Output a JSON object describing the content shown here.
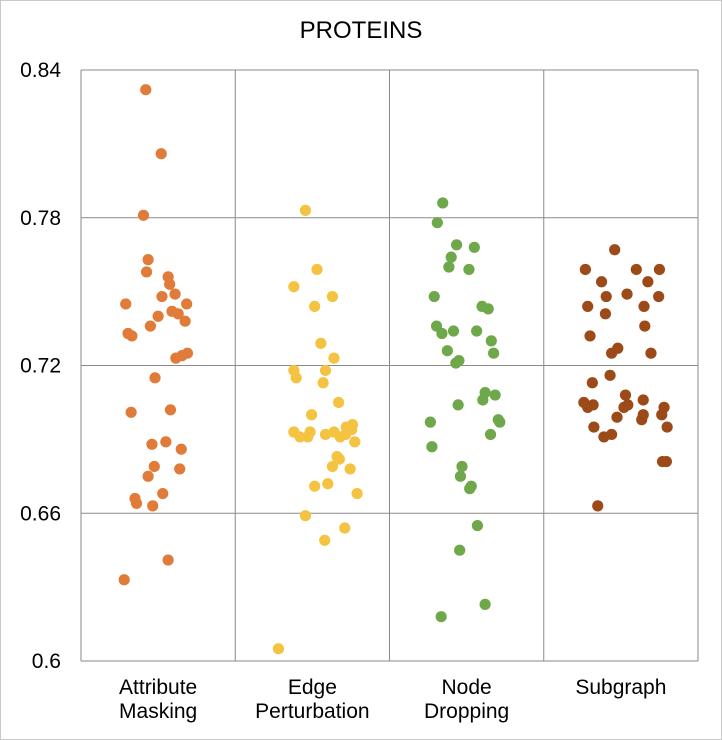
{
  "chart_data": {
    "type": "scatter",
    "title": "PROTEINS",
    "xlabel": "",
    "ylabel": "",
    "ylim": [
      0.6,
      0.84
    ],
    "yticks": [
      0.6,
      0.66,
      0.72,
      0.78,
      0.84
    ],
    "ytick_labels": [
      "0.6",
      "0.66",
      "0.72",
      "0.78",
      "0.84"
    ],
    "grid": true,
    "categories": [
      {
        "lines": [
          "Attribute",
          "Masking"
        ]
      },
      {
        "lines": [
          "Edge",
          "Perturbation"
        ]
      },
      {
        "lines": [
          "Node",
          "Dropping"
        ]
      },
      {
        "lines": [
          "Subgraph"
        ]
      }
    ],
    "series": [
      {
        "color": "#e07b39",
        "points": [
          {
            "j": -0.16,
            "y": 0.832
          },
          {
            "j": 0.04,
            "y": 0.806
          },
          {
            "j": -0.19,
            "y": 0.781
          },
          {
            "j": -0.13,
            "y": 0.763
          },
          {
            "j": -0.15,
            "y": 0.758
          },
          {
            "j": 0.13,
            "y": 0.756
          },
          {
            "j": 0.15,
            "y": 0.753
          },
          {
            "j": 0.22,
            "y": 0.749
          },
          {
            "j": 0.05,
            "y": 0.748
          },
          {
            "j": -0.42,
            "y": 0.745
          },
          {
            "j": 0.37,
            "y": 0.745
          },
          {
            "j": 0.18,
            "y": 0.742
          },
          {
            "j": 0.26,
            "y": 0.741
          },
          {
            "j": 0.0,
            "y": 0.74
          },
          {
            "j": 0.35,
            "y": 0.738
          },
          {
            "j": -0.1,
            "y": 0.736
          },
          {
            "j": -0.39,
            "y": 0.733
          },
          {
            "j": -0.34,
            "y": 0.732
          },
          {
            "j": 0.38,
            "y": 0.725
          },
          {
            "j": 0.31,
            "y": 0.724
          },
          {
            "j": 0.23,
            "y": 0.723
          },
          {
            "j": -0.04,
            "y": 0.715
          },
          {
            "j": 0.16,
            "y": 0.702
          },
          {
            "j": -0.35,
            "y": 0.701
          },
          {
            "j": 0.1,
            "y": 0.689
          },
          {
            "j": -0.08,
            "y": 0.688
          },
          {
            "j": 0.3,
            "y": 0.686
          },
          {
            "j": -0.05,
            "y": 0.679
          },
          {
            "j": 0.28,
            "y": 0.678
          },
          {
            "j": -0.13,
            "y": 0.675
          },
          {
            "j": 0.06,
            "y": 0.668
          },
          {
            "j": -0.3,
            "y": 0.666
          },
          {
            "j": -0.28,
            "y": 0.664
          },
          {
            "j": -0.07,
            "y": 0.663
          },
          {
            "j": 0.13,
            "y": 0.641
          },
          {
            "j": -0.44,
            "y": 0.633
          }
        ]
      },
      {
        "color": "#f5c342",
        "points": [
          {
            "j": -0.09,
            "y": 0.783
          },
          {
            "j": 0.06,
            "y": 0.759
          },
          {
            "j": -0.24,
            "y": 0.752
          },
          {
            "j": 0.26,
            "y": 0.748
          },
          {
            "j": 0.03,
            "y": 0.744
          },
          {
            "j": 0.11,
            "y": 0.729
          },
          {
            "j": 0.28,
            "y": 0.723
          },
          {
            "j": -0.24,
            "y": 0.718
          },
          {
            "j": 0.17,
            "y": 0.718
          },
          {
            "j": -0.21,
            "y": 0.715
          },
          {
            "j": 0.14,
            "y": 0.713
          },
          {
            "j": 0.34,
            "y": 0.705
          },
          {
            "j": -0.01,
            "y": 0.7
          },
          {
            "j": 0.52,
            "y": 0.696
          },
          {
            "j": 0.44,
            "y": 0.695
          },
          {
            "j": 0.51,
            "y": 0.694
          },
          {
            "j": -0.03,
            "y": 0.693
          },
          {
            "j": 0.28,
            "y": 0.693
          },
          {
            "j": -0.24,
            "y": 0.693
          },
          {
            "j": 0.17,
            "y": 0.692
          },
          {
            "j": 0.43,
            "y": 0.692
          },
          {
            "j": -0.06,
            "y": 0.691
          },
          {
            "j": -0.16,
            "y": 0.691
          },
          {
            "j": 0.36,
            "y": 0.691
          },
          {
            "j": 0.55,
            "y": 0.689
          },
          {
            "j": 0.32,
            "y": 0.683
          },
          {
            "j": 0.35,
            "y": 0.682
          },
          {
            "j": 0.26,
            "y": 0.679
          },
          {
            "j": 0.49,
            "y": 0.678
          },
          {
            "j": 0.2,
            "y": 0.672
          },
          {
            "j": 0.03,
            "y": 0.671
          },
          {
            "j": 0.58,
            "y": 0.668
          },
          {
            "j": -0.09,
            "y": 0.659
          },
          {
            "j": 0.42,
            "y": 0.654
          },
          {
            "j": 0.16,
            "y": 0.649
          },
          {
            "j": -0.44,
            "y": 0.605
          }
        ]
      },
      {
        "color": "#6fa84a",
        "points": [
          {
            "j": -0.31,
            "y": 0.786
          },
          {
            "j": -0.38,
            "y": 0.778
          },
          {
            "j": -0.13,
            "y": 0.769
          },
          {
            "j": 0.1,
            "y": 0.768
          },
          {
            "j": -0.2,
            "y": 0.764
          },
          {
            "j": -0.23,
            "y": 0.76
          },
          {
            "j": 0.03,
            "y": 0.759
          },
          {
            "j": -0.42,
            "y": 0.748
          },
          {
            "j": 0.2,
            "y": 0.744
          },
          {
            "j": 0.28,
            "y": 0.743
          },
          {
            "j": -0.39,
            "y": 0.736
          },
          {
            "j": -0.32,
            "y": 0.733
          },
          {
            "j": -0.17,
            "y": 0.734
          },
          {
            "j": 0.13,
            "y": 0.734
          },
          {
            "j": 0.32,
            "y": 0.73
          },
          {
            "j": -0.25,
            "y": 0.726
          },
          {
            "j": 0.35,
            "y": 0.725
          },
          {
            "j": -0.14,
            "y": 0.721
          },
          {
            "j": -0.1,
            "y": 0.722
          },
          {
            "j": 0.24,
            "y": 0.709
          },
          {
            "j": 0.37,
            "y": 0.708
          },
          {
            "j": 0.21,
            "y": 0.706
          },
          {
            "j": -0.11,
            "y": 0.704
          },
          {
            "j": 0.41,
            "y": 0.698
          },
          {
            "j": 0.43,
            "y": 0.697
          },
          {
            "j": -0.47,
            "y": 0.697
          },
          {
            "j": 0.31,
            "y": 0.692
          },
          {
            "j": -0.45,
            "y": 0.687
          },
          {
            "j": -0.06,
            "y": 0.679
          },
          {
            "j": -0.08,
            "y": 0.675
          },
          {
            "j": 0.06,
            "y": 0.671
          },
          {
            "j": 0.04,
            "y": 0.67
          },
          {
            "j": 0.14,
            "y": 0.655
          },
          {
            "j": -0.09,
            "y": 0.645
          },
          {
            "j": 0.24,
            "y": 0.623
          },
          {
            "j": -0.33,
            "y": 0.618
          }
        ]
      },
      {
        "color": "#9c4a17",
        "points": [
          {
            "j": -0.08,
            "y": 0.767
          },
          {
            "j": -0.46,
            "y": 0.759
          },
          {
            "j": 0.2,
            "y": 0.759
          },
          {
            "j": 0.5,
            "y": 0.759
          },
          {
            "j": -0.25,
            "y": 0.754
          },
          {
            "j": 0.35,
            "y": 0.754
          },
          {
            "j": 0.08,
            "y": 0.749
          },
          {
            "j": -0.19,
            "y": 0.748
          },
          {
            "j": 0.49,
            "y": 0.748
          },
          {
            "j": -0.43,
            "y": 0.744
          },
          {
            "j": 0.3,
            "y": 0.744
          },
          {
            "j": -0.2,
            "y": 0.741
          },
          {
            "j": 0.31,
            "y": 0.736
          },
          {
            "j": -0.4,
            "y": 0.732
          },
          {
            "j": -0.04,
            "y": 0.727
          },
          {
            "j": -0.12,
            "y": 0.725
          },
          {
            "j": 0.39,
            "y": 0.725
          },
          {
            "j": -0.14,
            "y": 0.716
          },
          {
            "j": -0.37,
            "y": 0.713
          },
          {
            "j": 0.06,
            "y": 0.708
          },
          {
            "j": 0.29,
            "y": 0.706
          },
          {
            "j": -0.48,
            "y": 0.705
          },
          {
            "j": 0.09,
            "y": 0.704
          },
          {
            "j": -0.36,
            "y": 0.704
          },
          {
            "j": 0.04,
            "y": 0.703
          },
          {
            "j": -0.43,
            "y": 0.703
          },
          {
            "j": 0.56,
            "y": 0.703
          },
          {
            "j": 0.53,
            "y": 0.7
          },
          {
            "j": 0.29,
            "y": 0.7
          },
          {
            "j": 0.27,
            "y": 0.698
          },
          {
            "j": -0.05,
            "y": 0.699
          },
          {
            "j": -0.35,
            "y": 0.695
          },
          {
            "j": 0.6,
            "y": 0.695
          },
          {
            "j": -0.22,
            "y": 0.691
          },
          {
            "j": -0.12,
            "y": 0.692
          },
          {
            "j": 0.54,
            "y": 0.681
          },
          {
            "j": 0.59,
            "y": 0.681
          },
          {
            "j": -0.3,
            "y": 0.663
          }
        ]
      }
    ]
  }
}
